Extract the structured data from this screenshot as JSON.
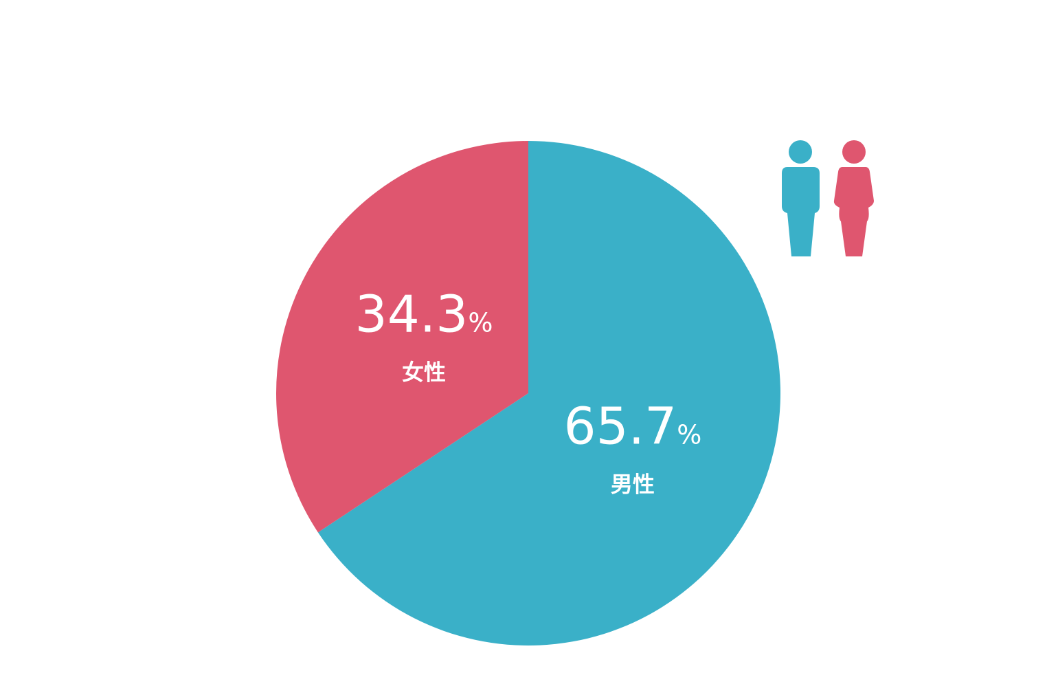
{
  "chart_data": {
    "type": "pie",
    "categories": [
      "男性",
      "女性"
    ],
    "values": [
      65.7,
      34.3
    ],
    "unit": "%",
    "colors": [
      "#3ab0c8",
      "#df566f"
    ]
  }
}
